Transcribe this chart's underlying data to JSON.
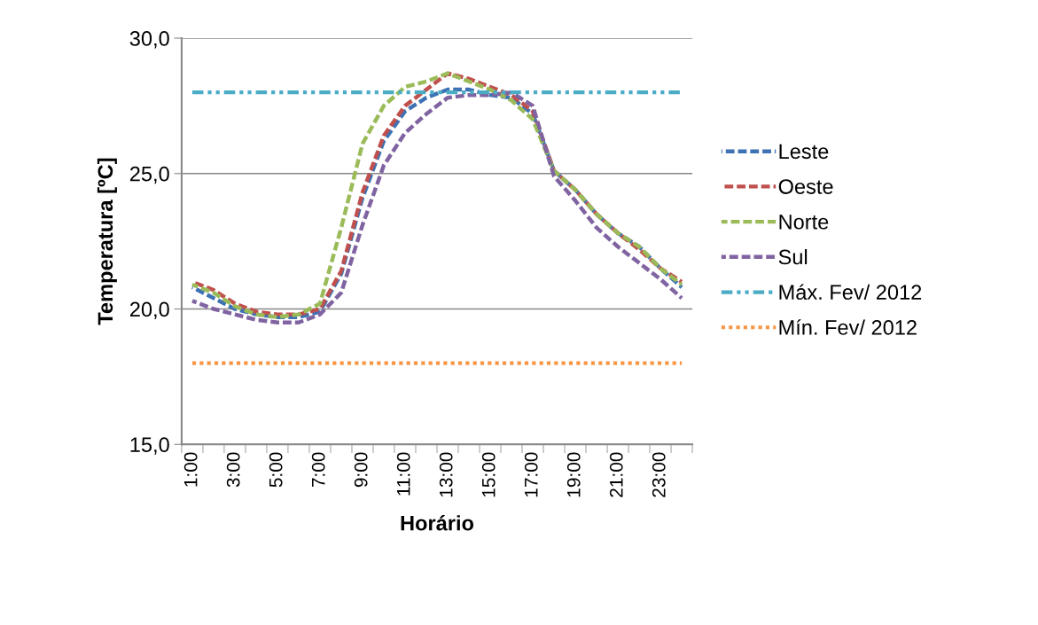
{
  "chart_data": {
    "type": "line",
    "xlabel": "Horário",
    "ylabel": "Temperatura [ºC]",
    "categories": [
      "1:00",
      null,
      "3:00",
      null,
      "5:00",
      null,
      "7:00",
      null,
      "9:00",
      null,
      "11:00",
      null,
      "13:00",
      null,
      "15:00",
      null,
      "17:00",
      null,
      "19:00",
      null,
      "21:00",
      null,
      "23:00",
      null
    ],
    "series": [
      {
        "name": "Leste",
        "color": "#3d72b4",
        "values": [
          20.8,
          20.4,
          20.0,
          19.8,
          19.7,
          19.7,
          19.9,
          21.3,
          24.1,
          26.2,
          27.3,
          27.8,
          28.1,
          28.1,
          27.9,
          27.8,
          27.2,
          25.1,
          24.4,
          23.5,
          22.8,
          22.3,
          21.5,
          20.8
        ]
      },
      {
        "name": "Oeste",
        "color": "#c0504d",
        "values": [
          21.0,
          20.7,
          20.2,
          19.9,
          19.8,
          19.8,
          20.0,
          21.4,
          24.3,
          26.4,
          27.5,
          28.1,
          28.7,
          28.5,
          28.2,
          27.9,
          27.3,
          25.1,
          24.4,
          23.5,
          22.8,
          22.2,
          21.5,
          21.0
        ]
      },
      {
        "name": "Norte",
        "color": "#9bbb59",
        "values": [
          20.9,
          20.6,
          20.1,
          19.8,
          19.7,
          19.8,
          20.2,
          23.0,
          26.1,
          27.5,
          28.2,
          28.4,
          28.7,
          28.4,
          28.1,
          27.7,
          27.0,
          25.1,
          24.4,
          23.5,
          22.8,
          22.3,
          21.5,
          20.9
        ]
      },
      {
        "name": "Sul",
        "color": "#8064a2",
        "values": [
          20.3,
          20.0,
          19.8,
          19.6,
          19.5,
          19.5,
          19.8,
          20.6,
          23.1,
          25.3,
          26.5,
          27.2,
          27.8,
          27.9,
          27.9,
          28.0,
          27.5,
          24.9,
          24.0,
          23.0,
          22.3,
          21.7,
          21.1,
          20.4
        ]
      }
    ],
    "line_style": "dashed",
    "marker": "none",
    "ref_lines": [
      {
        "axis": "y",
        "value": 28.0,
        "label": "Máx. Fev/ 2012",
        "color": "#4bacc6",
        "line_style": "dashdot"
      },
      {
        "axis": "y",
        "value": 18.0,
        "label": "Mín. Fev/ 2012",
        "color": "#f79646",
        "line_style": "dotted"
      }
    ],
    "ylim": [
      15,
      30
    ],
    "yticks": [
      {
        "value": 15,
        "label": "15,0"
      },
      {
        "value": 20,
        "label": "20,0"
      },
      {
        "value": 25,
        "label": "25,0"
      },
      {
        "value": 30,
        "label": "30,0"
      }
    ],
    "grid": "y",
    "legend": "right"
  }
}
